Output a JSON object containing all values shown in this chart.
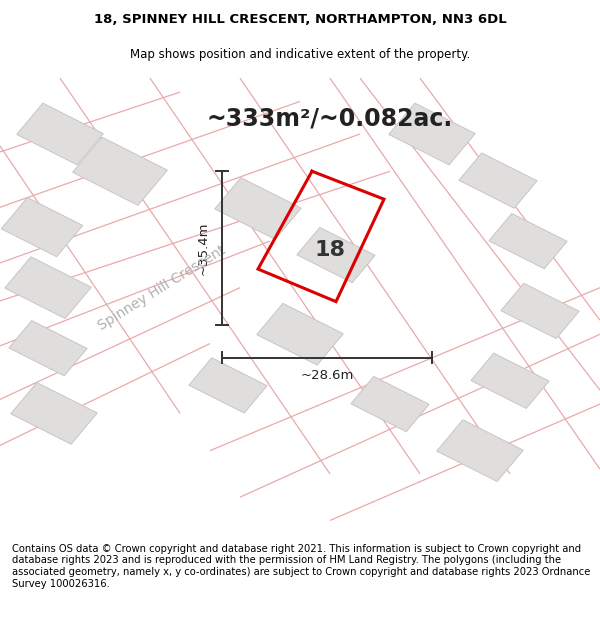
{
  "title_line1": "18, SPINNEY HILL CRESCENT, NORTHAMPTON, NN3 6DL",
  "title_line2": "Map shows position and indicative extent of the property.",
  "area_label": "~333m²/~0.082ac.",
  "dim_width": "~28.6m",
  "dim_height": "~35.4m",
  "number_label": "18",
  "street_label": "Spinney Hill Crescent",
  "footer_text": "Contains OS data © Crown copyright and database right 2021. This information is subject to Crown copyright and database rights 2023 and is reproduced with the permission of HM Land Registry. The polygons (including the associated geometry, namely x, y co-ordinates) are subject to Crown copyright and database rights 2023 Ordnance Survey 100026316.",
  "map_bg": "#f7f5f5",
  "building_color": "#e0dddd",
  "building_edge": "#c8c5c5",
  "road_line_color": "#e8aaaa",
  "property_color": "#dd0000",
  "dim_line_color": "#333333",
  "title_fontsize": 9.5,
  "subtitle_fontsize": 8.5,
  "area_fontsize": 17,
  "number_fontsize": 16,
  "street_fontsize": 10,
  "footer_fontsize": 7.2
}
